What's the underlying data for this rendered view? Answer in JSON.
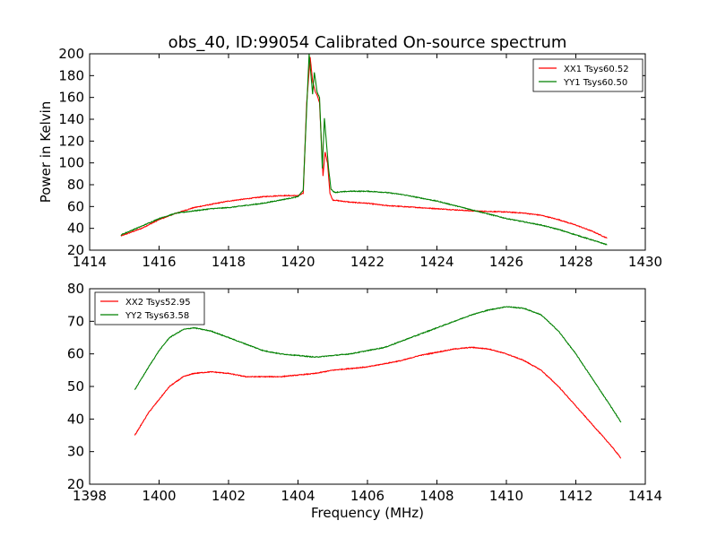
{
  "figure_title": "obs_40, ID:99054 Calibrated On-source spectrum",
  "colors": {
    "red": "#ff0000",
    "green": "#008000"
  },
  "chart_data": [
    {
      "type": "line",
      "title": "obs_40, ID:99054 Calibrated On-source spectrum",
      "xlabel": "",
      "ylabel": "Power in Kelvin",
      "xlim": [
        1414,
        1430
      ],
      "ylim": [
        20,
        200
      ],
      "xticks": [
        1414,
        1416,
        1418,
        1420,
        1422,
        1424,
        1426,
        1428,
        1430
      ],
      "yticks": [
        20,
        40,
        60,
        80,
        100,
        120,
        140,
        160,
        180,
        200
      ],
      "grid": false,
      "legend_position": "top-right",
      "series": [
        {
          "name": "XX1 Tsys60.52",
          "color": "#ff0000",
          "x": [
            1414.9,
            1415.5,
            1416.0,
            1416.5,
            1417.0,
            1417.5,
            1418.0,
            1418.5,
            1419.0,
            1419.5,
            1420.0,
            1420.15,
            1420.25,
            1420.35,
            1420.42,
            1420.5,
            1420.55,
            1420.62,
            1420.72,
            1420.78,
            1420.85,
            1420.92,
            1421.0,
            1421.5,
            1422.0,
            1422.5,
            1423.0,
            1423.5,
            1424.0,
            1424.5,
            1425.0,
            1425.5,
            1426.0,
            1426.5,
            1427.0,
            1427.5,
            1428.0,
            1428.5,
            1428.9
          ],
          "y": [
            33,
            40,
            48,
            54,
            59,
            62,
            65,
            67,
            69,
            70,
            70,
            72,
            155,
            197,
            175,
            165,
            162,
            155,
            88,
            110,
            100,
            72,
            66,
            64,
            63,
            61,
            60,
            59,
            58,
            57,
            56,
            55.5,
            55,
            54,
            52,
            48,
            43,
            37,
            31
          ]
        },
        {
          "name": "YY1 Tsys60.50",
          "color": "#008000",
          "x": [
            1414.9,
            1415.5,
            1416.0,
            1416.5,
            1417.0,
            1417.5,
            1418.0,
            1418.5,
            1419.0,
            1419.5,
            1420.0,
            1420.15,
            1420.25,
            1420.32,
            1420.37,
            1420.42,
            1420.47,
            1420.55,
            1420.62,
            1420.7,
            1420.76,
            1420.82,
            1420.88,
            1420.95,
            1421.05,
            1421.5,
            1422.0,
            1422.5,
            1423.0,
            1423.5,
            1424.0,
            1424.5,
            1425.0,
            1425.5,
            1426.0,
            1426.5,
            1427.0,
            1427.5,
            1428.0,
            1428.5,
            1428.9
          ],
          "y": [
            34,
            42,
            49,
            54,
            56,
            58,
            59,
            61,
            63,
            66,
            69,
            75,
            150,
            200,
            182,
            163,
            183,
            165,
            160,
            95,
            141,
            118,
            95,
            76,
            73,
            74,
            74,
            73,
            71,
            68,
            65,
            61,
            57,
            53,
            49,
            46,
            43,
            39,
            34,
            29,
            25
          ]
        }
      ]
    },
    {
      "type": "line",
      "title": "",
      "xlabel": "Frequency (MHz)",
      "ylabel": "",
      "xlim": [
        1398,
        1414
      ],
      "ylim": [
        20,
        80
      ],
      "xticks": [
        1398,
        1400,
        1402,
        1404,
        1406,
        1408,
        1410,
        1412,
        1414
      ],
      "yticks": [
        20,
        30,
        40,
        50,
        60,
        70,
        80
      ],
      "grid": false,
      "legend_position": "top-left",
      "series": [
        {
          "name": "XX2 Tsys52.95",
          "color": "#ff0000",
          "x": [
            1399.3,
            1399.7,
            1400.0,
            1400.3,
            1400.7,
            1401.0,
            1401.5,
            1402.0,
            1402.5,
            1403.0,
            1403.5,
            1404.0,
            1404.5,
            1405.0,
            1405.5,
            1406.0,
            1406.5,
            1407.0,
            1407.5,
            1408.0,
            1408.5,
            1409.0,
            1409.5,
            1410.0,
            1410.5,
            1411.0,
            1411.5,
            1412.0,
            1412.5,
            1413.0,
            1413.3
          ],
          "y": [
            35,
            42,
            46,
            50,
            53,
            54,
            54.5,
            54,
            53,
            53,
            53,
            53.5,
            54,
            55,
            55.5,
            56,
            57,
            58,
            59.5,
            60.5,
            61.5,
            62,
            61.5,
            60,
            58,
            55,
            50,
            44,
            38,
            32,
            28
          ]
        },
        {
          "name": "YY2 Tsys63.58",
          "color": "#008000",
          "x": [
            1399.3,
            1399.7,
            1400.0,
            1400.3,
            1400.7,
            1401.0,
            1401.5,
            1402.0,
            1402.5,
            1403.0,
            1403.5,
            1404.0,
            1404.5,
            1405.0,
            1405.5,
            1406.0,
            1406.5,
            1407.0,
            1407.5,
            1408.0,
            1408.5,
            1409.0,
            1409.5,
            1410.0,
            1410.5,
            1411.0,
            1411.5,
            1412.0,
            1412.5,
            1413.0,
            1413.3
          ],
          "y": [
            49,
            56,
            61,
            65,
            67.5,
            68,
            67,
            65,
            63,
            61,
            60,
            59.5,
            59,
            59.5,
            60,
            61,
            62,
            64,
            66,
            68,
            70,
            72,
            73.5,
            74.5,
            74,
            72,
            67,
            60,
            52,
            44,
            39
          ]
        }
      ]
    }
  ]
}
